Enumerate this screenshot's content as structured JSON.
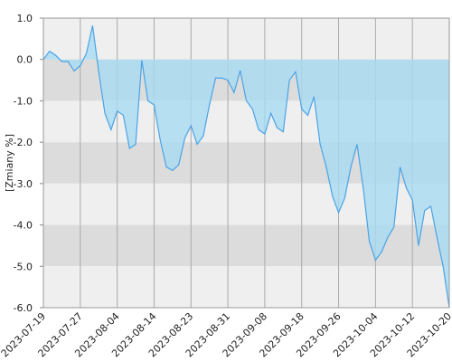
{
  "chart_data": {
    "type": "area",
    "ylabel": "[Zmiany %]",
    "categories": [
      "2023-07-19",
      null,
      null,
      null,
      null,
      null,
      "2023-07-27",
      null,
      null,
      null,
      null,
      null,
      "2023-08-04",
      null,
      null,
      null,
      null,
      null,
      "2023-08-14",
      null,
      null,
      null,
      null,
      null,
      "2023-08-23",
      null,
      null,
      null,
      null,
      null,
      "2023-08-31",
      null,
      null,
      null,
      null,
      null,
      "2023-09-08",
      null,
      null,
      null,
      null,
      null,
      "2023-09-18",
      null,
      null,
      null,
      null,
      null,
      "2023-09-26",
      null,
      null,
      null,
      null,
      null,
      "2023-10-04",
      null,
      null,
      null,
      null,
      null,
      "2023-10-12",
      null,
      null,
      null,
      null,
      null,
      "2023-10-20"
    ],
    "series": [
      {
        "color": "#4aa3e6",
        "fill": "#a9dbf3",
        "values": [
          0.0,
          0.2,
          0.1,
          -0.05,
          -0.05,
          -0.28,
          -0.15,
          0.15,
          0.82,
          -0.3,
          -1.3,
          -1.7,
          -1.25,
          -1.35,
          -2.15,
          -2.05,
          -0.02,
          -1.0,
          -1.1,
          -1.95,
          -2.6,
          -2.68,
          -2.55,
          -1.9,
          -1.6,
          -2.05,
          -1.85,
          -1.1,
          -0.45,
          -0.45,
          -0.5,
          -0.8,
          -0.27,
          -1.0,
          -1.2,
          -1.7,
          -1.8,
          -1.3,
          -1.65,
          -1.75,
          -0.5,
          -0.3,
          -1.2,
          -1.35,
          -0.9,
          -2.05,
          -2.6,
          -3.3,
          -3.7,
          -3.35,
          -2.6,
          -2.05,
          -3.1,
          -4.4,
          -4.85,
          -4.65,
          -4.3,
          -4.05,
          -2.6,
          -3.1,
          -3.4,
          -4.5,
          -3.65,
          -3.55,
          -4.3,
          -5.0,
          -6.0
        ]
      }
    ],
    "ylim": [
      -6,
      1
    ],
    "yticks": [
      {
        "value": 1,
        "label": "1.0"
      },
      {
        "value": 0,
        "label": "0.0"
      },
      {
        "value": -1,
        "label": "-1.0"
      },
      {
        "value": -2,
        "label": "-2.0"
      },
      {
        "value": -3,
        "label": "-3.0"
      },
      {
        "value": -4,
        "label": "-4.0"
      },
      {
        "value": -5,
        "label": "-5.0"
      },
      {
        "value": -6,
        "label": "-6.0"
      }
    ],
    "grid": true
  }
}
